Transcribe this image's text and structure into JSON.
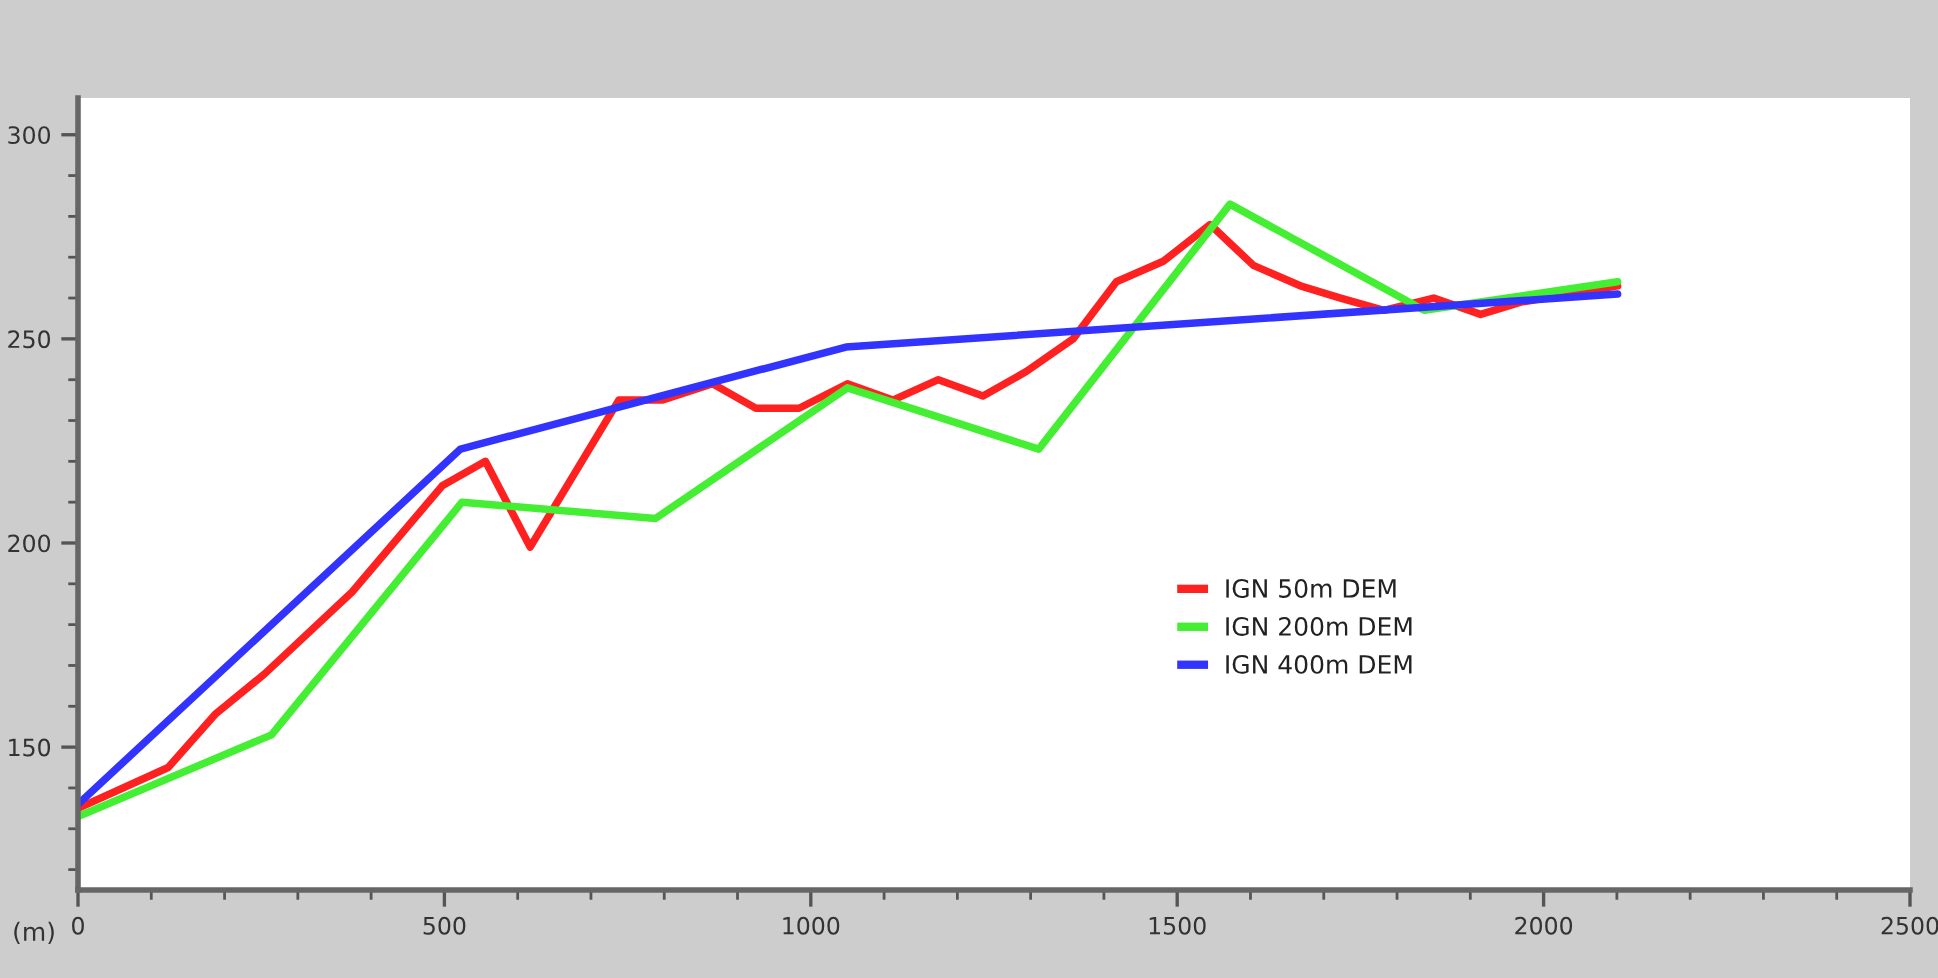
{
  "chart_data": {
    "type": "line",
    "xlabel": "(m)",
    "xlim": [
      0,
      2500
    ],
    "ylim": [
      115,
      309
    ],
    "xticks": [
      0,
      {
        "value": 100,
        "label": null
      },
      {
        "value": 200,
        "label": null
      },
      {
        "value": 300,
        "label": null
      },
      {
        "value": 400,
        "label": null
      },
      500,
      {
        "value": 600,
        "label": null
      },
      {
        "value": 700,
        "label": null
      },
      {
        "value": 800,
        "label": null
      },
      {
        "value": 900,
        "label": null
      },
      1000,
      {
        "value": 1100,
        "label": null
      },
      {
        "value": 1200,
        "label": null
      },
      {
        "value": 1300,
        "label": null
      },
      {
        "value": 1400,
        "label": null
      },
      1500,
      {
        "value": 1600,
        "label": null
      },
      {
        "value": 1700,
        "label": null
      },
      {
        "value": 1800,
        "label": null
      },
      {
        "value": 1900,
        "label": null
      },
      2000,
      {
        "value": 2100,
        "label": null
      },
      {
        "value": 2200,
        "label": null
      },
      {
        "value": 2300,
        "label": null
      },
      {
        "value": 2400,
        "label": null
      },
      2500
    ],
    "yticks": [
      {
        "value": 120,
        "label": null
      },
      {
        "value": 130,
        "label": null
      },
      {
        "value": 140,
        "label": null
      },
      150,
      {
        "value": 160,
        "label": null
      },
      {
        "value": 170,
        "label": null
      },
      {
        "value": 180,
        "label": null
      },
      {
        "value": 190,
        "label": null
      },
      200,
      {
        "value": 210,
        "label": null
      },
      {
        "value": 220,
        "label": null
      },
      {
        "value": 230,
        "label": null
      },
      {
        "value": 240,
        "label": null
      },
      250,
      {
        "value": 260,
        "label": null
      },
      {
        "value": 270,
        "label": null
      },
      {
        "value": 280,
        "label": null
      },
      {
        "value": 290,
        "label": null
      },
      300
    ],
    "grid": false,
    "legend": "center",
    "marker": "none",
    "line_style": "solid",
    "series": [
      {
        "name": "IGN 50m DEM",
        "color": "#ff2020",
        "x": [
          0,
          123,
          187,
          255,
          374,
          497,
          556,
          617,
          738,
          797,
          866,
          925,
          984,
          1050,
          1112,
          1174,
          1235,
          1294,
          1358,
          1417,
          1481,
          1545,
          1604,
          1668,
          1723,
          1782,
          1850,
          1914,
          1969,
          2101
        ],
        "values": [
          135,
          145,
          158,
          168,
          188,
          214,
          220,
          199,
          235,
          235,
          239,
          233,
          233,
          239,
          235,
          240,
          236,
          242,
          250,
          264,
          269,
          278,
          268,
          263,
          260,
          257,
          260,
          256,
          259,
          263
        ]
      },
      {
        "name": "IGN 200m DEM",
        "color": "#44ee33",
        "x": [
          0,
          264,
          524,
          788,
          1050,
          1311,
          1572,
          1837,
          2101
        ],
        "values": [
          133,
          153,
          210,
          206,
          238,
          223,
          283,
          257,
          264
        ]
      },
      {
        "name": "IGN 400m DEM",
        "color": "#3333ff",
        "x": [
          0,
          522,
          1048,
          2101
        ],
        "values": [
          136,
          223,
          248,
          261
        ]
      }
    ]
  }
}
